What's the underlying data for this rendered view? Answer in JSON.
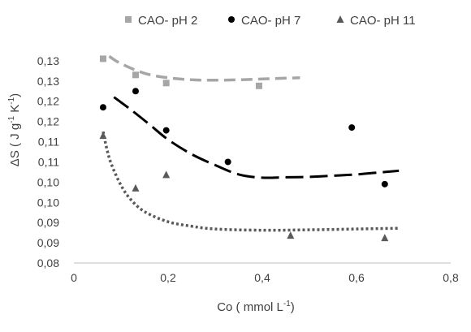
{
  "chart_data": {
    "type": "scatter",
    "title": "",
    "xlabel": "Co ( mmol L",
    "xlabel_sup": "-1",
    "xlabel_tail": ")",
    "ylabel_delta": "ΔS ( J g",
    "ylabel_sup1": "-1",
    "ylabel_mid": " K",
    "ylabel_sup2": "-1",
    "ylabel_tail": ")",
    "xlim": [
      0,
      0.8
    ],
    "ylim": [
      0.08,
      0.136
    ],
    "x_ticks": [
      0,
      0.2,
      0.4,
      0.6,
      0.8
    ],
    "x_tick_labels": [
      "0",
      "0,2",
      "0,4",
      "0,6",
      "0,8"
    ],
    "y_ticks": [
      0.08,
      0.085,
      0.09,
      0.095,
      0.1,
      0.105,
      0.11,
      0.115,
      0.12,
      0.125,
      0.13,
      0.135
    ],
    "y_tick_labels": [
      "0,08",
      "0,09",
      "0,09",
      "0,10",
      "0,10",
      "0,11",
      "0,11",
      "0,12",
      "0,12",
      "0,13",
      "0,13",
      ""
    ],
    "grid": false,
    "legend_position": "top",
    "series": [
      {
        "name": "CAO- pH 2",
        "marker": "square",
        "color": "#a6a6a6",
        "trend_style": "dashed",
        "x": [
          0.062,
          0.131,
          0.196,
          0.393
        ],
        "y": [
          0.1305,
          0.1265,
          0.1245,
          0.1238
        ],
        "trend_x": [
          0.075,
          0.1,
          0.15,
          0.2,
          0.25,
          0.3,
          0.35,
          0.4,
          0.45,
          0.48
        ],
        "trend_y": [
          0.1311,
          0.1293,
          0.1269,
          0.1258,
          0.1253,
          0.1252,
          0.1253,
          0.1255,
          0.1257,
          0.1258
        ]
      },
      {
        "name": "CAO- pH 7",
        "marker": "circle",
        "color": "#000000",
        "trend_style": "long-dashed",
        "x": [
          0.062,
          0.131,
          0.196,
          0.327,
          0.59,
          0.66
        ],
        "y": [
          0.1185,
          0.1225,
          0.1128,
          0.105,
          0.1135,
          0.0995
        ],
        "trend_x": [
          0.085,
          0.12,
          0.16,
          0.2,
          0.25,
          0.3,
          0.35,
          0.4,
          0.45,
          0.5,
          0.55,
          0.6,
          0.65,
          0.69
        ],
        "trend_y": [
          0.121,
          0.118,
          0.1143,
          0.1105,
          0.1069,
          0.1042,
          0.1019,
          0.1011,
          0.1012,
          0.1013,
          0.1016,
          0.1019,
          0.1024,
          0.1028
        ]
      },
      {
        "name": "CAO- pH 11",
        "marker": "triangle",
        "color": "#595959",
        "trend_style": "dotted",
        "x": [
          0.062,
          0.131,
          0.196,
          0.46,
          0.66
        ],
        "y": [
          0.1115,
          0.0985,
          0.1018,
          0.0868,
          0.0862
        ],
        "trend_x": [
          0.062,
          0.07,
          0.08,
          0.1,
          0.12,
          0.15,
          0.2,
          0.25,
          0.3,
          0.4,
          0.5,
          0.6,
          0.69
        ],
        "trend_y": [
          0.1125,
          0.1082,
          0.1043,
          0.0992,
          0.0958,
          0.0927,
          0.0902,
          0.0891,
          0.0884,
          0.0881,
          0.0882,
          0.0884,
          0.0886
        ]
      }
    ]
  }
}
